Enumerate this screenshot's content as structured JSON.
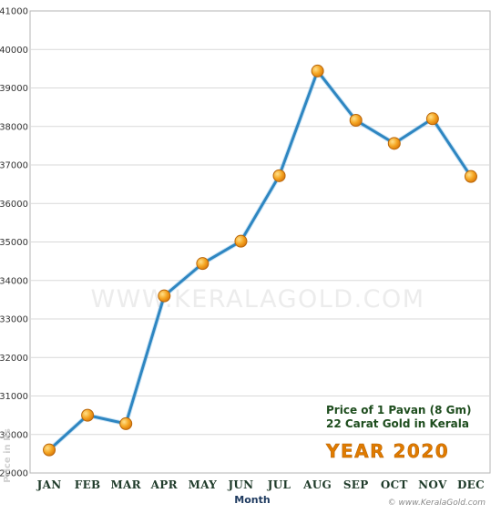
{
  "chart_data": {
    "type": "line",
    "categories": [
      "JAN",
      "FEB",
      "MAR",
      "APR",
      "MAY",
      "JUN",
      "JUL",
      "AUG",
      "SEP",
      "OCT",
      "NOV",
      "DEC"
    ],
    "values": [
      29600,
      30500,
      30280,
      33600,
      34440,
      35020,
      36720,
      39440,
      38160,
      37560,
      38200,
      36700
    ],
    "title": "Price of 1 Pavan (8 Gm)",
    "subtitle": "22 Carat Gold in Kerala",
    "badge": "YEAR 2020",
    "xlabel": "Month",
    "ylabel": "Price in Rs",
    "ylim": [
      29000,
      41000
    ],
    "ytick_step": 1000,
    "grid": true,
    "watermark": "WWW.KERALAGOLD.COM",
    "footer": "© www.KeralaGold.com",
    "colors": {
      "line": "#2e86c1",
      "marker": "#f39c12",
      "marker_edge": "#b9660a",
      "title_text": "#1e4d1e",
      "badge_text": "#e07b00",
      "grid": "#d9d9d9"
    }
  }
}
